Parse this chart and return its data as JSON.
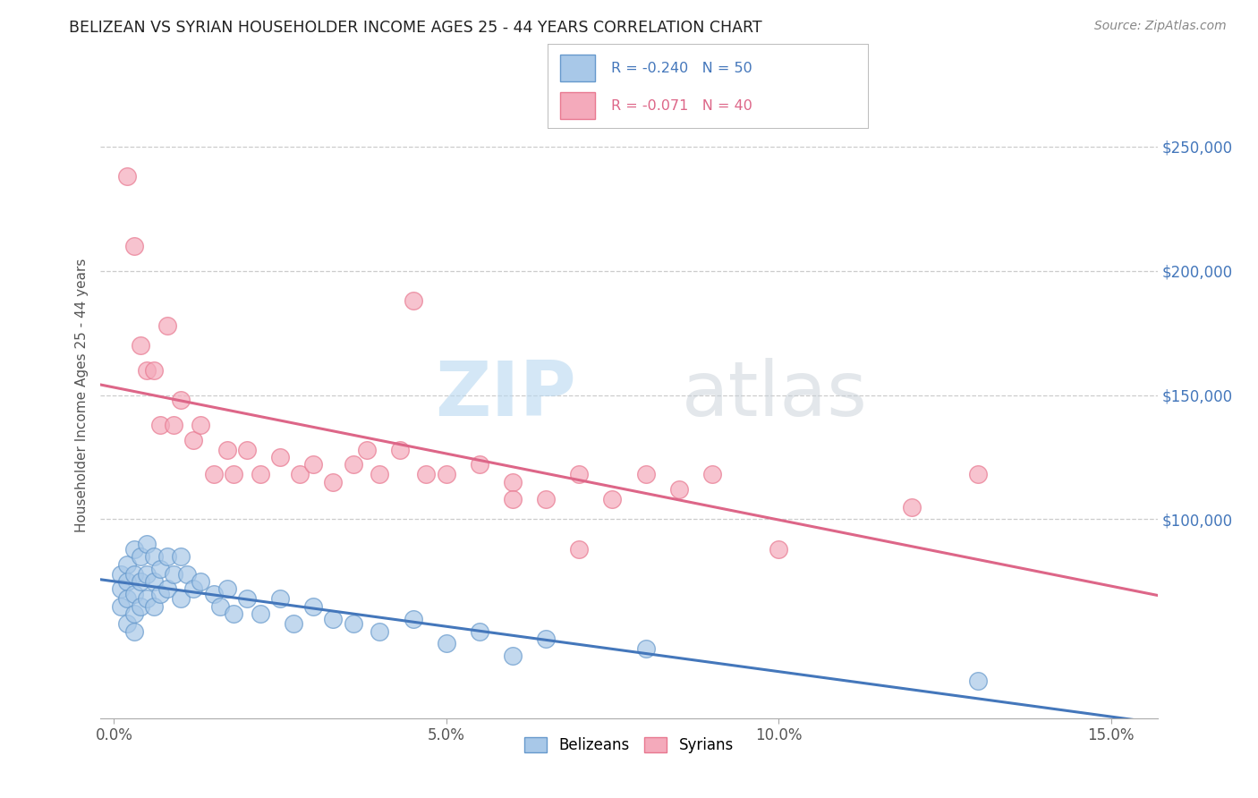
{
  "title": "BELIZEAN VS SYRIAN HOUSEHOLDER INCOME AGES 25 - 44 YEARS CORRELATION CHART",
  "source": "Source: ZipAtlas.com",
  "ylabel": "Householder Income Ages 25 - 44 years",
  "xlabel_ticks": [
    "0.0%",
    "5.0%",
    "10.0%",
    "15.0%"
  ],
  "xlabel_vals": [
    0.0,
    0.05,
    0.1,
    0.15
  ],
  "ylabel_ticks": [
    "$100,000",
    "$150,000",
    "$200,000",
    "$250,000"
  ],
  "ylabel_vals": [
    100000,
    150000,
    200000,
    250000
  ],
  "xlim": [
    -0.002,
    0.157
  ],
  "ylim": [
    20000,
    280000
  ],
  "belizean_color": "#A8C8E8",
  "syrian_color": "#F4AABB",
  "belizean_edge_color": "#6699CC",
  "syrian_edge_color": "#E87890",
  "belizean_line_color": "#4477BB",
  "syrian_line_color": "#DD6688",
  "r_belizean": -0.24,
  "n_belizean": 50,
  "r_syrian": -0.071,
  "n_syrian": 40,
  "watermark_zip": "ZIP",
  "watermark_atlas": "atlas",
  "background_color": "#FFFFFF",
  "grid_color": "#CCCCCC",
  "belizean_x": [
    0.001,
    0.001,
    0.001,
    0.002,
    0.002,
    0.002,
    0.002,
    0.003,
    0.003,
    0.003,
    0.003,
    0.003,
    0.004,
    0.004,
    0.004,
    0.005,
    0.005,
    0.005,
    0.006,
    0.006,
    0.006,
    0.007,
    0.007,
    0.008,
    0.008,
    0.009,
    0.01,
    0.01,
    0.011,
    0.012,
    0.013,
    0.015,
    0.016,
    0.017,
    0.018,
    0.02,
    0.022,
    0.025,
    0.027,
    0.03,
    0.033,
    0.036,
    0.04,
    0.045,
    0.05,
    0.055,
    0.06,
    0.065,
    0.08,
    0.13
  ],
  "belizean_y": [
    78000,
    72000,
    65000,
    82000,
    75000,
    68000,
    58000,
    88000,
    78000,
    70000,
    62000,
    55000,
    85000,
    75000,
    65000,
    90000,
    78000,
    68000,
    85000,
    75000,
    65000,
    80000,
    70000,
    85000,
    72000,
    78000,
    85000,
    68000,
    78000,
    72000,
    75000,
    70000,
    65000,
    72000,
    62000,
    68000,
    62000,
    68000,
    58000,
    65000,
    60000,
    58000,
    55000,
    60000,
    50000,
    55000,
    45000,
    52000,
    48000,
    35000
  ],
  "syrian_x": [
    0.002,
    0.003,
    0.004,
    0.005,
    0.006,
    0.007,
    0.008,
    0.009,
    0.01,
    0.012,
    0.013,
    0.015,
    0.017,
    0.018,
    0.02,
    0.022,
    0.025,
    0.028,
    0.03,
    0.033,
    0.036,
    0.038,
    0.04,
    0.043,
    0.047,
    0.05,
    0.055,
    0.06,
    0.065,
    0.07,
    0.075,
    0.08,
    0.09,
    0.1,
    0.12,
    0.13,
    0.045,
    0.06,
    0.07,
    0.085
  ],
  "syrian_y": [
    238000,
    210000,
    170000,
    160000,
    160000,
    138000,
    178000,
    138000,
    148000,
    132000,
    138000,
    118000,
    128000,
    118000,
    128000,
    118000,
    125000,
    118000,
    122000,
    115000,
    122000,
    128000,
    118000,
    128000,
    118000,
    118000,
    122000,
    115000,
    108000,
    118000,
    108000,
    118000,
    118000,
    88000,
    105000,
    118000,
    188000,
    108000,
    88000,
    112000
  ]
}
